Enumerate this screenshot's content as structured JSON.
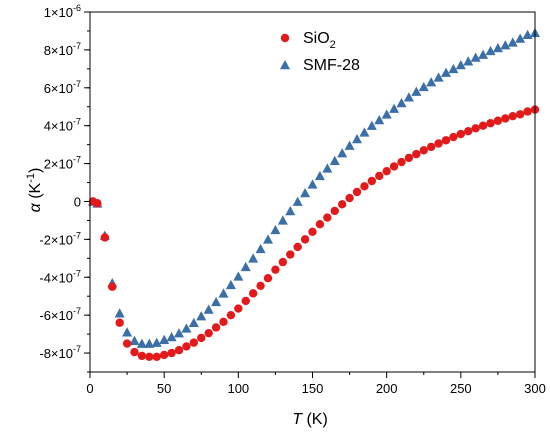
{
  "chart_data": {
    "type": "scatter",
    "xlabel": {
      "symbol": "T",
      "unit": " (K)"
    },
    "ylabel": {
      "symbol": "α",
      "unit_open": " (K",
      "unit_sup": "-1",
      "unit_close": ")"
    },
    "xlim": [
      0,
      300
    ],
    "ylim": [
      -9e-07,
      1e-06
    ],
    "x_ticks": [
      0,
      50,
      100,
      150,
      200,
      250,
      300
    ],
    "x_tick_labels": [
      "0",
      "50",
      "100",
      "150",
      "200",
      "250",
      "300"
    ],
    "y_ticks": [
      1e-06,
      8e-07,
      6e-07,
      4e-07,
      2e-07,
      0,
      -2e-07,
      -4e-07,
      -6e-07,
      -8e-07
    ],
    "y_tick_labels": [
      {
        "base": "1×10",
        "exp": "-6"
      },
      {
        "base": "8×10",
        "exp": "-7"
      },
      {
        "base": "6×10",
        "exp": "-7"
      },
      {
        "base": "4×10",
        "exp": "-7"
      },
      {
        "base": "2×10",
        "exp": "-7"
      },
      {
        "base": "0",
        "exp": ""
      },
      {
        "base": "-2×10",
        "exp": "-7"
      },
      {
        "base": "-4×10",
        "exp": "-7"
      },
      {
        "base": "-6×10",
        "exp": "-7"
      },
      {
        "base": "-8×10",
        "exp": "-7"
      }
    ],
    "legend_position": "top-center",
    "grid": false,
    "series": [
      {
        "name": "SiO",
        "name_sub": "2",
        "marker": "circle",
        "color": "#e31a1c",
        "x": [
          2,
          5,
          10,
          15,
          20,
          25,
          30,
          35,
          40,
          45,
          50,
          55,
          60,
          65,
          70,
          75,
          80,
          85,
          90,
          95,
          100,
          105,
          110,
          115,
          120,
          125,
          130,
          135,
          140,
          145,
          150,
          155,
          160,
          165,
          170,
          175,
          180,
          185,
          190,
          195,
          200,
          205,
          210,
          215,
          220,
          225,
          230,
          235,
          240,
          245,
          250,
          255,
          260,
          265,
          270,
          275,
          280,
          285,
          290,
          295,
          300
        ],
        "y": [
          0,
          -1e-08,
          -1.9e-07,
          -4.5e-07,
          -6.4e-07,
          -7.5e-07,
          -7.95e-07,
          -8.15e-07,
          -8.2e-07,
          -8.2e-07,
          -8.1e-07,
          -8e-07,
          -7.85e-07,
          -7.65e-07,
          -7.45e-07,
          -7.2e-07,
          -6.95e-07,
          -6.65e-07,
          -6.35e-07,
          -6e-07,
          -5.65e-07,
          -5.25e-07,
          -4.85e-07,
          -4.45e-07,
          -4.05e-07,
          -3.6e-07,
          -3.2e-07,
          -2.8e-07,
          -2.4e-07,
          -2e-07,
          -1.6e-07,
          -1.2e-07,
          -8.5e-08,
          -5e-08,
          -1.5e-08,
          1.8e-08,
          5e-08,
          8e-08,
          1.08e-07,
          1.35e-07,
          1.6e-07,
          1.85e-07,
          2.08e-07,
          2.3e-07,
          2.5e-07,
          2.7e-07,
          2.88e-07,
          3.06e-07,
          3.23e-07,
          3.4e-07,
          3.56e-07,
          3.71e-07,
          3.86e-07,
          4e-07,
          4.13e-07,
          4.26e-07,
          4.38e-07,
          4.5e-07,
          4.6e-07,
          4.75e-07,
          4.85e-07
        ]
      },
      {
        "name": "SMF-28",
        "name_sub": "",
        "marker": "triangle",
        "color": "#3a6fa8",
        "x": [
          2,
          5,
          10,
          15,
          20,
          25,
          30,
          35,
          40,
          45,
          50,
          55,
          60,
          65,
          70,
          75,
          80,
          85,
          90,
          95,
          100,
          105,
          110,
          115,
          120,
          125,
          130,
          135,
          140,
          145,
          150,
          155,
          160,
          165,
          170,
          175,
          180,
          185,
          190,
          195,
          200,
          205,
          210,
          215,
          220,
          225,
          230,
          235,
          240,
          245,
          250,
          255,
          260,
          265,
          270,
          275,
          280,
          285,
          290,
          295,
          300
        ],
        "y": [
          0,
          -1e-08,
          -1.8e-07,
          -4.3e-07,
          -5.9e-07,
          -6.9e-07,
          -7.35e-07,
          -7.5e-07,
          -7.5e-07,
          -7.45e-07,
          -7.3e-07,
          -7.15e-07,
          -6.95e-07,
          -6.7e-07,
          -6.4e-07,
          -6.05e-07,
          -5.7e-07,
          -5.3e-07,
          -4.85e-07,
          -4.4e-07,
          -3.95e-07,
          -3.45e-07,
          -3e-07,
          -2.5e-07,
          -2e-07,
          -1.5e-07,
          -1e-07,
          -5e-08,
          -1e-09,
          4.5e-08,
          9e-08,
          1.35e-07,
          1.75e-07,
          2.15e-07,
          2.55e-07,
          2.95e-07,
          3.3e-07,
          3.65e-07,
          4e-07,
          4.3e-07,
          4.6e-07,
          4.9e-07,
          5.2e-07,
          5.5e-07,
          5.8e-07,
          6.05e-07,
          6.3e-07,
          6.55e-07,
          6.8e-07,
          7e-07,
          7.2e-07,
          7.4e-07,
          7.6e-07,
          7.75e-07,
          7.95e-07,
          8.1e-07,
          8.25e-07,
          8.4e-07,
          8.6e-07,
          8.8e-07,
          8.9e-07
        ]
      }
    ]
  }
}
